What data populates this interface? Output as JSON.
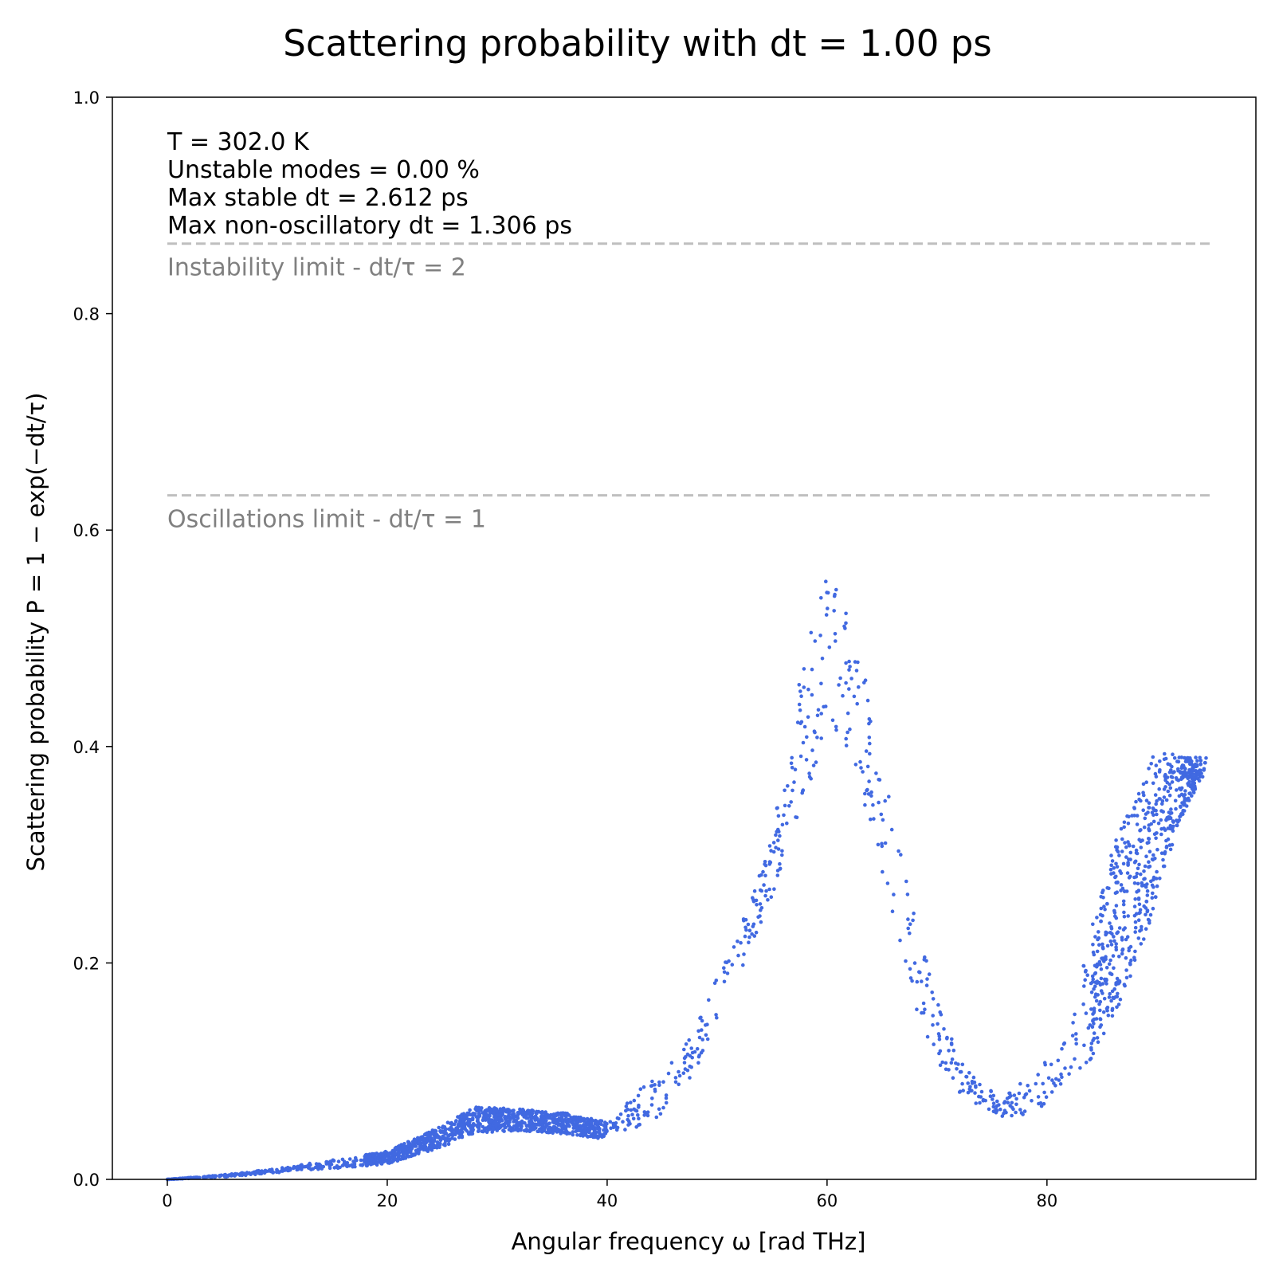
{
  "chart_data": {
    "type": "scatter",
    "title": "Scattering probability with dt = 1.00 ps",
    "xlabel": "Angular frequency ω [rad THz]",
    "ylabel": "Scattering probability P = 1 − exp(−dt/τ)",
    "xlim": [
      -5,
      99
    ],
    "ylim": [
      0,
      1
    ],
    "xticks": [
      0,
      20,
      40,
      60,
      80
    ],
    "yticks": [
      0.0,
      0.2,
      0.4,
      0.6,
      0.8,
      1.0
    ],
    "xtick_labels": [
      "0",
      "20",
      "40",
      "60",
      "80"
    ],
    "ytick_labels": [
      "0.0",
      "0.2",
      "0.4",
      "0.6",
      "0.8",
      "1.0"
    ],
    "grid": false,
    "marker_color": "#4169e1",
    "annotations": [
      "T = 302.0 K",
      "Unstable modes = 0.00 %",
      "Max stable dt = 2.612 ps",
      "Max non-oscillatory dt = 1.306 ps"
    ],
    "reference_lines": [
      {
        "label": "Instability limit - dt/τ = 2",
        "y": 0.8647,
        "color": "#bfbfbf",
        "style": "dashed"
      },
      {
        "label": "Oscillations limit - dt/τ = 1",
        "y": 0.6321,
        "color": "#bfbfbf",
        "style": "dashed"
      }
    ],
    "point_count": 2600,
    "envelope": {
      "omega": [
        0,
        5,
        10,
        15,
        20,
        25,
        28,
        32,
        36,
        40,
        42,
        45,
        48,
        50,
        52,
        54,
        56,
        58,
        60,
        62,
        64,
        66,
        68,
        70,
        72,
        74,
        76,
        78,
        80,
        82,
        84,
        86,
        88,
        90,
        92,
        94
      ],
      "p_mean": [
        0.0,
        0.003,
        0.008,
        0.014,
        0.02,
        0.04,
        0.055,
        0.055,
        0.052,
        0.045,
        0.06,
        0.08,
        0.12,
        0.17,
        0.21,
        0.26,
        0.33,
        0.42,
        0.49,
        0.46,
        0.38,
        0.29,
        0.2,
        0.14,
        0.095,
        0.075,
        0.07,
        0.075,
        0.09,
        0.115,
        0.17,
        0.23,
        0.27,
        0.33,
        0.36,
        0.38
      ],
      "p_spread": [
        0.0,
        0.001,
        0.002,
        0.004,
        0.006,
        0.01,
        0.012,
        0.01,
        0.01,
        0.008,
        0.015,
        0.02,
        0.02,
        0.02,
        0.02,
        0.025,
        0.04,
        0.07,
        0.07,
        0.07,
        0.06,
        0.05,
        0.04,
        0.03,
        0.015,
        0.012,
        0.012,
        0.015,
        0.02,
        0.02,
        0.06,
        0.08,
        0.08,
        0.07,
        0.03,
        0.01
      ]
    }
  }
}
